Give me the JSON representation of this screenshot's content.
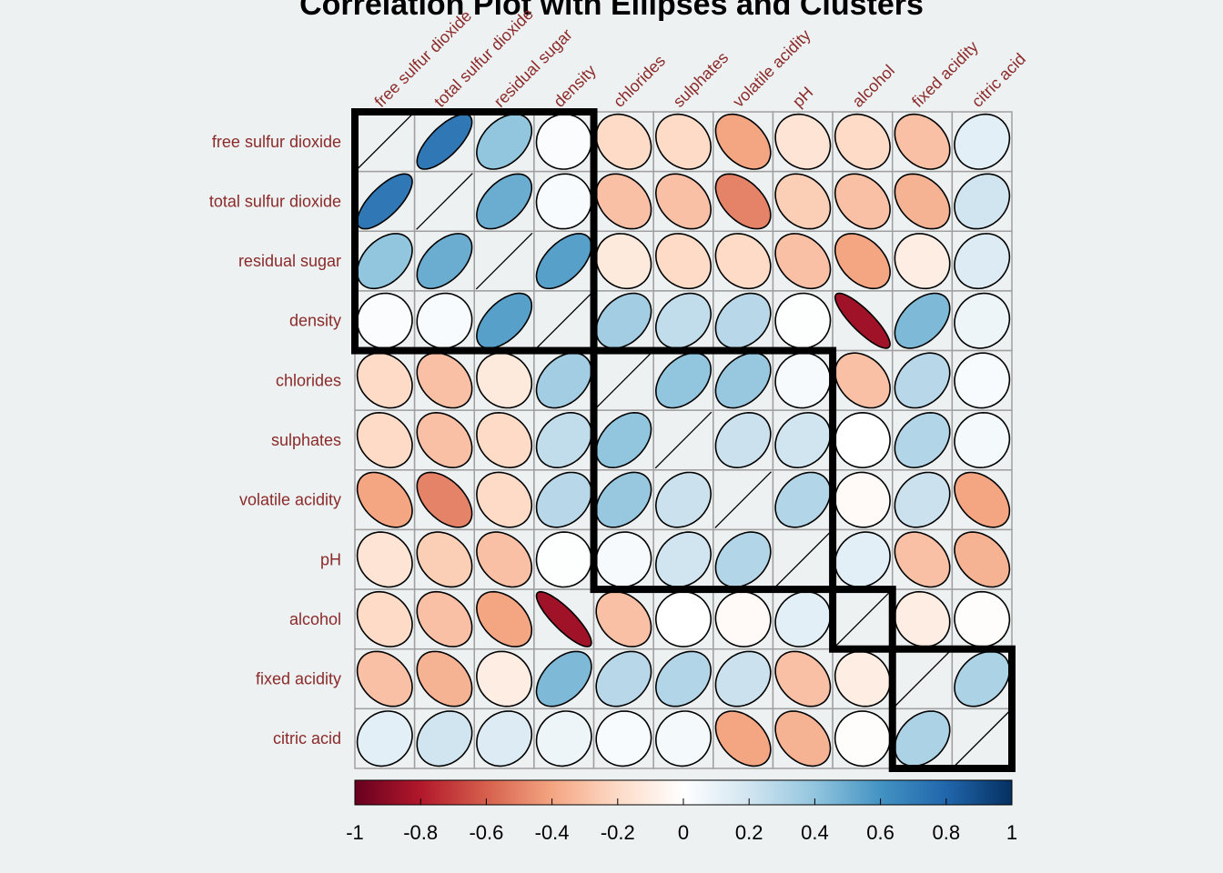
{
  "chart_data": {
    "type": "heatmap",
    "title": "Correlation Plot with Ellipses and Clusters",
    "method": "ellipse",
    "variables": [
      "free sulfur dioxide",
      "total sulfur dioxide",
      "residual sugar",
      "density",
      "chlorides",
      "sulphates",
      "volatile acidity",
      "pH",
      "alcohol",
      "fixed acidity",
      "citric acid"
    ],
    "upper_triangle": [
      [
        0.72,
        0.4,
        0.02,
        -0.2,
        -0.2,
        -0.4,
        -0.15,
        -0.2,
        -0.3,
        0.12
      ],
      [
        0.5,
        0.03,
        -0.3,
        -0.3,
        -0.5,
        -0.25,
        -0.3,
        -0.35,
        0.2
      ],
      [
        0.55,
        -0.12,
        -0.2,
        -0.2,
        -0.3,
        -0.4,
        -0.1,
        0.15
      ],
      [
        0.35,
        0.25,
        0.28,
        0.01,
        -0.85,
        0.45,
        0.08
      ],
      [
        0.4,
        0.38,
        0.04,
        -0.3,
        0.28,
        0.03
      ],
      [
        0.22,
        0.2,
        0.0,
        0.3,
        0.05
      ],
      [
        0.3,
        -0.03,
        0.22,
        -0.4
      ],
      [
        0.12,
        -0.3,
        -0.35
      ],
      [
        -0.1,
        -0.01
      ],
      [
        0.32
      ]
    ],
    "clusters": [
      [
        0,
        3
      ],
      [
        4,
        7
      ],
      [
        8,
        8
      ],
      [
        9,
        10
      ]
    ],
    "colorbar": {
      "ticks": [
        "-1",
        "-0.8",
        "-0.6",
        "-0.4",
        "-0.2",
        "0",
        "0.2",
        "0.4",
        "0.6",
        "0.8",
        "1"
      ],
      "range": [
        -1,
        1
      ]
    },
    "palette": [
      "#67001F",
      "#B2182B",
      "#D6604D",
      "#F4A582",
      "#FDDBC7",
      "#FFFFFF",
      "#D1E5F0",
      "#92C5DE",
      "#4393C3",
      "#2166AC",
      "#053061"
    ]
  }
}
